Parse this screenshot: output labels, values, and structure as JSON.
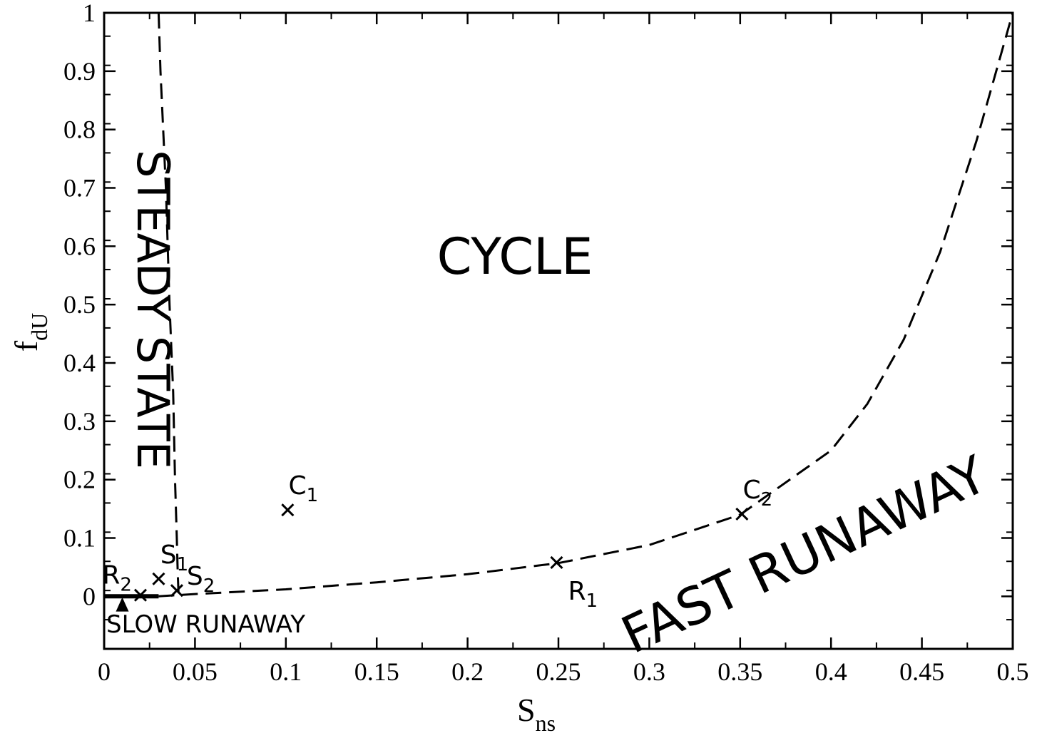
{
  "chart_data": {
    "type": "scatter",
    "xlabel": "S",
    "xlabel_sub": "ns",
    "ylabel": "f",
    "ylabel_sub": "dU",
    "xlim": [
      0,
      0.5
    ],
    "ylim": [
      -0.09,
      1.0
    ],
    "grid": false,
    "x_ticks": [
      0,
      0.05,
      0.1,
      0.15,
      0.2,
      0.25,
      0.3,
      0.35,
      0.4,
      0.45,
      0.5
    ],
    "x_tick_labels": [
      "0",
      "0.05",
      "0.1",
      "0.15",
      "0.2",
      "0.25",
      "0.3",
      "0.35",
      "0.4",
      "0.45",
      "0.5"
    ],
    "y_ticks": [
      0,
      0.1,
      0.2,
      0.3,
      0.4,
      0.5,
      0.6,
      0.7,
      0.8,
      0.9,
      1.0
    ],
    "y_tick_labels": [
      "0",
      "0.1",
      "0.2",
      "0.3",
      "0.4",
      "0.5",
      "0.6",
      "0.7",
      "0.8",
      "0.9",
      "1"
    ],
    "boundaries": [
      {
        "style": "dashed",
        "x": [
          0.03,
          0.031,
          0.034,
          0.036,
          0.038,
          0.039,
          0.04,
          0.0405,
          0.041
        ],
        "y": [
          1.0,
          0.9,
          0.7,
          0.5,
          0.35,
          0.2,
          0.1,
          0.04,
          0.0
        ]
      },
      {
        "style": "dashed",
        "x": [
          0.03,
          0.05,
          0.1,
          0.15,
          0.2,
          0.25,
          0.3,
          0.35,
          0.4,
          0.42,
          0.44,
          0.46,
          0.48,
          0.5
        ],
        "y": [
          0.0,
          0.004,
          0.012,
          0.024,
          0.038,
          0.057,
          0.088,
          0.14,
          0.25,
          0.33,
          0.44,
          0.59,
          0.78,
          1.0
        ]
      },
      {
        "style": "solid",
        "x": [
          0,
          0.03
        ],
        "y": [
          0,
          0
        ]
      }
    ],
    "points": [
      {
        "label": "C",
        "sub": "1",
        "x": 0.101,
        "y": 0.148,
        "label_pos": "above"
      },
      {
        "label": "C",
        "sub": "2",
        "x": 0.351,
        "y": 0.141,
        "label_pos": "above"
      },
      {
        "label": "R",
        "sub": "1",
        "x": 0.249,
        "y": 0.058,
        "label_pos": "below-right"
      },
      {
        "label": "R",
        "sub": "2",
        "x": 0.02,
        "y": 0.002,
        "label_pos": "left-above"
      },
      {
        "label": "S",
        "sub": "1",
        "x": 0.03,
        "y": 0.03,
        "label_pos": "above"
      },
      {
        "label": "S",
        "sub": "2",
        "x": 0.04,
        "y": 0.01,
        "label_pos": "right"
      }
    ],
    "markers": [
      {
        "shape": "triangle",
        "x": 0.01,
        "y": -0.015
      }
    ],
    "region_labels": [
      {
        "text": "STEADY STATE",
        "orientation": "vertical"
      },
      {
        "text": "CYCLE",
        "orientation": "horizontal"
      },
      {
        "text": "FAST RUNAWAY",
        "orientation": "rotated"
      },
      {
        "text": "SLOW RUNAWAY",
        "orientation": "horizontal"
      }
    ]
  }
}
